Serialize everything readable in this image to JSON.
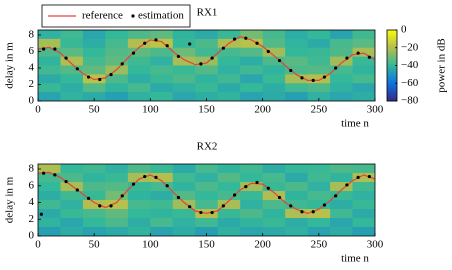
{
  "chart_data": [
    {
      "type": "heatmap",
      "title": "RX1",
      "x_label": "time n",
      "y_label": "delay in m",
      "xlim": [
        0,
        300
      ],
      "ylim": [
        0,
        8.6
      ],
      "xticks": [
        0,
        50,
        100,
        150,
        200,
        250,
        300
      ],
      "yticks": [
        0,
        2,
        4,
        6,
        8
      ],
      "legend": "upper left",
      "colormap": [
        "#352a87",
        "#1071e0",
        "#33b89a",
        "#b4be4e",
        "#f9fb0e"
      ],
      "colorbar": {
        "label": "power in dB",
        "clim": [
          -80,
          0
        ],
        "ticks": [
          {
            "value": 0,
            "label": "0"
          },
          {
            "value": -20,
            "label": "−20"
          },
          {
            "value": -40,
            "label": "−40"
          },
          {
            "value": -60,
            "label": "−60"
          },
          {
            "value": -80,
            "label": "−80"
          }
        ]
      },
      "z": [
        [
          -42,
          -38,
          -45,
          -40,
          -36,
          -33,
          -41,
          -44,
          -39,
          -30,
          -37,
          -43,
          -40,
          -46,
          -38
        ],
        [
          -22,
          -39,
          -43,
          -37,
          -20,
          -18,
          -40,
          -36,
          -21,
          -19,
          -35,
          -41,
          -44,
          -37,
          -34
        ],
        [
          -36,
          -34,
          -40,
          -35,
          -33,
          -36,
          -31,
          -38,
          -37,
          -35,
          -23,
          -40,
          -39,
          -36,
          -22
        ],
        [
          -41,
          -21,
          -37,
          -33,
          -38,
          -42,
          -22,
          -24,
          -40,
          -43,
          -36,
          -34,
          -38,
          -23,
          -39
        ],
        [
          -38,
          -35,
          -33,
          -24,
          -40,
          -37,
          -39,
          -35,
          -42,
          -38,
          -41,
          -36,
          -35,
          -37,
          -41
        ],
        [
          -44,
          -40,
          -19,
          -36,
          -43,
          -39,
          -36,
          -41,
          -38,
          -45,
          -39,
          -22,
          -20,
          -40,
          -37
        ],
        [
          -39,
          -43,
          -35,
          -41,
          -37,
          -44,
          -42,
          -39,
          -44,
          -40,
          -43,
          -38,
          -36,
          -42,
          -45
        ],
        [
          -46,
          -41,
          -44,
          -47,
          -42,
          -40,
          -45,
          -43,
          -41,
          -46,
          -44,
          -47,
          -42,
          -45,
          -43
        ]
      ],
      "series": [
        {
          "name": "reference",
          "type": "line",
          "color": "#e8403a",
          "x": [
            0,
            10,
            20,
            30,
            40,
            50,
            60,
            70,
            80,
            90,
            100,
            110,
            120,
            130,
            140,
            150,
            160,
            170,
            180,
            190,
            200,
            210,
            220,
            230,
            240,
            250,
            260,
            270,
            280,
            290,
            300
          ],
          "values": [
            6.3,
            6.5,
            5.8,
            4.5,
            3.3,
            2.6,
            2.8,
            3.8,
            5.2,
            6.5,
            7.4,
            7.2,
            6.0,
            5.0,
            4.4,
            4.6,
            5.8,
            7.0,
            7.8,
            7.4,
            6.6,
            5.5,
            4.3,
            3.2,
            2.5,
            2.5,
            3.3,
            4.6,
            5.6,
            5.8,
            5.0
          ]
        },
        {
          "name": "estimation",
          "type": "scatter",
          "color": "#000000",
          "x": [
            5,
            15,
            25,
            35,
            45,
            55,
            65,
            75,
            85,
            95,
            105,
            115,
            125,
            135,
            145,
            155,
            165,
            175,
            185,
            195,
            205,
            215,
            225,
            235,
            245,
            255,
            265,
            275,
            285,
            295
          ],
          "values": [
            6.3,
            6.3,
            5.2,
            3.9,
            2.9,
            2.6,
            3.2,
            4.5,
            5.8,
            7.0,
            7.4,
            6.7,
            5.4,
            6.9,
            4.5,
            5.2,
            6.4,
            7.5,
            7.6,
            7.0,
            6.0,
            4.9,
            3.7,
            2.8,
            2.5,
            2.9,
            4.0,
            5.2,
            5.8,
            5.3
          ]
        }
      ]
    },
    {
      "type": "heatmap",
      "title": "RX2",
      "x_label": "time n",
      "y_label": "delay in m",
      "xlim": [
        0,
        300
      ],
      "ylim": [
        0,
        8.6
      ],
      "xticks": [
        0,
        50,
        100,
        150,
        200,
        250,
        300
      ],
      "yticks": [
        0,
        2,
        4,
        6,
        8
      ],
      "colormap": [
        "#352a87",
        "#1071e0",
        "#33b89a",
        "#b4be4e",
        "#f9fb0e"
      ],
      "clim": [
        -80,
        0
      ],
      "z": [
        [
          -21,
          -40,
          -38,
          -42,
          -36,
          -39,
          -44,
          -37,
          -41,
          -38,
          -43,
          -40,
          -39,
          -36,
          -37
        ],
        [
          -37,
          -36,
          -41,
          -39,
          -22,
          -20,
          -38,
          -42,
          -35,
          -40,
          -37,
          -44,
          -38,
          -41,
          -21
        ],
        [
          -40,
          -22,
          -36,
          -35,
          -39,
          -37,
          -41,
          -36,
          -40,
          -23,
          -39,
          -36,
          -42,
          -22,
          -38
        ],
        [
          -43,
          -38,
          -39,
          -30,
          -41,
          -43,
          -35,
          -40,
          -37,
          -39,
          -21,
          -41,
          -37,
          -39,
          -42
        ],
        [
          -38,
          -42,
          -20,
          -19,
          -37,
          -38,
          -23,
          -37,
          -22,
          -42,
          -36,
          -38,
          -40,
          -43,
          -39
        ],
        [
          -44,
          -39,
          -37,
          -33,
          -40,
          -41,
          -39,
          -20,
          -39,
          -36,
          -41,
          -21,
          -19,
          -38,
          -44
        ],
        [
          -41,
          -45,
          -40,
          -36,
          -43,
          -37,
          -42,
          -38,
          -44,
          -41,
          -39,
          -43,
          -40,
          -45,
          -40
        ],
        [
          -47,
          -43,
          -46,
          -44,
          -41,
          -46,
          -43,
          -47,
          -42,
          -45,
          -44,
          -42,
          -46,
          -43,
          -47
        ]
      ],
      "series": [
        {
          "type": "line",
          "color": "#e8403a",
          "x": [
            0,
            10,
            20,
            30,
            40,
            50,
            60,
            70,
            80,
            90,
            100,
            110,
            120,
            130,
            140,
            150,
            160,
            170,
            180,
            190,
            200,
            210,
            220,
            230,
            240,
            250,
            260,
            270,
            280,
            290,
            300
          ],
          "values": [
            7.5,
            7.6,
            7.0,
            6.0,
            5.0,
            4.0,
            3.4,
            4.0,
            5.5,
            6.8,
            7.3,
            6.6,
            5.3,
            4.0,
            3.0,
            2.7,
            3.0,
            4.2,
            5.5,
            6.3,
            6.2,
            5.2,
            4.0,
            3.2,
            2.7,
            3.2,
            4.2,
            5.5,
            6.6,
            7.3,
            6.8
          ]
        },
        {
          "type": "scatter",
          "color": "#000000",
          "x": [
            3,
            5,
            15,
            25,
            35,
            45,
            55,
            65,
            75,
            85,
            95,
            105,
            115,
            125,
            135,
            145,
            155,
            165,
            175,
            185,
            195,
            205,
            215,
            225,
            235,
            245,
            255,
            265,
            275,
            285,
            295
          ],
          "values": [
            2.6,
            7.5,
            7.3,
            6.5,
            5.5,
            4.5,
            3.6,
            3.6,
            4.8,
            6.2,
            7.1,
            7.0,
            6.0,
            4.6,
            3.5,
            2.8,
            2.8,
            3.6,
            4.9,
            5.9,
            6.4,
            5.7,
            4.6,
            3.6,
            2.9,
            2.9,
            3.7,
            4.8,
            6.1,
            7.0,
            7.1
          ]
        }
      ]
    }
  ]
}
